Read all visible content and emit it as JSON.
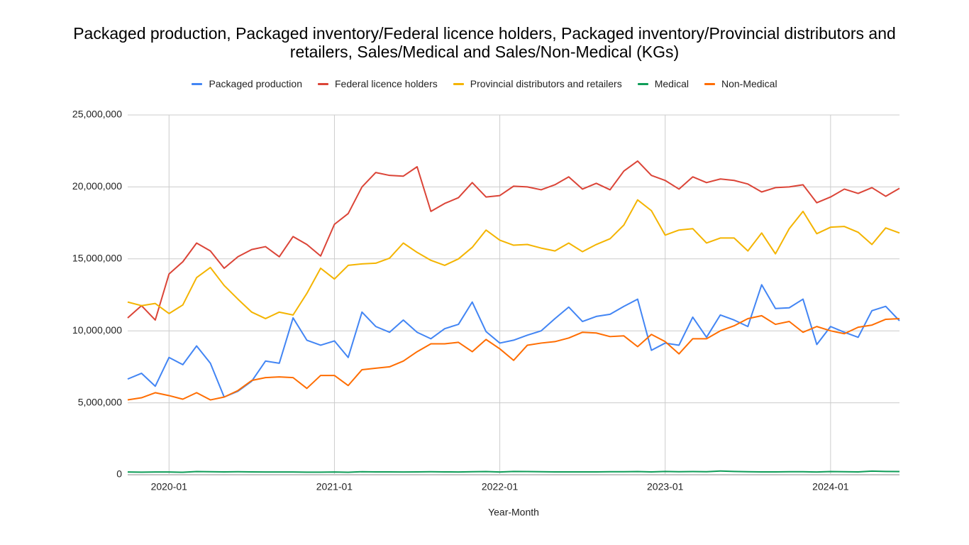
{
  "chart_data": {
    "type": "line",
    "title": "Packaged production, Packaged inventory/Federal licence holders, Packaged inventory/Provincial distributors and retailers, Sales/Medical and Sales/Non-Medical (KGs)",
    "x_label": "Year-Month",
    "categories": [
      null,
      null,
      null,
      "2020-01",
      null,
      null,
      null,
      null,
      null,
      null,
      null,
      null,
      null,
      null,
      null,
      "2021-01",
      null,
      null,
      null,
      null,
      null,
      null,
      null,
      null,
      null,
      null,
      null,
      "2022-01",
      null,
      null,
      null,
      null,
      null,
      null,
      null,
      null,
      null,
      null,
      null,
      "2023-01",
      null,
      null,
      null,
      null,
      null,
      null,
      null,
      null,
      null,
      null,
      null,
      "2024-01",
      null,
      null,
      null,
      null,
      null
    ],
    "ylim": [
      0,
      25000000
    ],
    "yticks": [
      0,
      {
        "value": 5000000,
        "label": "5,000,000"
      },
      {
        "value": 10000000,
        "label": "10,000,000"
      },
      {
        "value": 15000000,
        "label": "15,000,000"
      },
      {
        "value": 20000000,
        "label": "20,000,000"
      },
      {
        "value": 25000000,
        "label": "25,000,000"
      }
    ],
    "grid": true,
    "legend": "top",
    "series": [
      {
        "name": "Packaged production",
        "color": "#4285f4",
        "values": [
          6650000,
          7050000,
          6150000,
          8150000,
          7650000,
          8950000,
          7750000,
          5400000,
          5800000,
          6500000,
          7900000,
          7750000,
          10900000,
          9350000,
          9000000,
          9300000,
          8150000,
          11300000,
          10300000,
          9900000,
          10750000,
          9900000,
          9450000,
          10150000,
          10450000,
          12000000,
          9950000,
          9150000,
          9350000,
          9700000,
          10000000,
          10850000,
          11650000,
          10650000,
          11000000,
          11150000,
          11700000,
          12200000,
          8650000,
          9150000,
          9000000,
          10950000,
          9550000,
          11100000,
          10750000,
          10300000,
          13200000,
          11550000,
          11600000,
          12200000,
          9050000,
          10300000,
          9900000,
          9550000,
          11400000,
          11700000,
          10700000
        ]
      },
      {
        "name": "Federal licence holders",
        "color": "#db4437",
        "values": [
          10900000,
          11750000,
          10750000,
          13950000,
          14800000,
          16100000,
          15550000,
          14350000,
          15150000,
          15650000,
          15850000,
          15150000,
          16550000,
          16000000,
          15200000,
          17400000,
          18150000,
          20000000,
          21000000,
          20800000,
          20750000,
          21400000,
          18300000,
          18850000,
          19250000,
          20300000,
          19300000,
          19400000,
          20050000,
          20000000,
          19800000,
          20150000,
          20700000,
          19850000,
          20250000,
          19800000,
          21100000,
          21800000,
          20800000,
          20450000,
          19850000,
          20700000,
          20300000,
          20550000,
          20450000,
          20200000,
          19650000,
          19950000,
          20000000,
          20150000,
          18900000,
          19300000,
          19850000,
          19550000,
          19950000,
          19350000,
          19900000
        ]
      },
      {
        "name": "Provincial distributors and retailers",
        "color": "#f4b400",
        "values": [
          12000000,
          11750000,
          11900000,
          11200000,
          11800000,
          13700000,
          14400000,
          13150000,
          12200000,
          11300000,
          10850000,
          11300000,
          11100000,
          12600000,
          14350000,
          13600000,
          14550000,
          14650000,
          14700000,
          15050000,
          16100000,
          15450000,
          14900000,
          14550000,
          15000000,
          15800000,
          17000000,
          16300000,
          15950000,
          16000000,
          15750000,
          15550000,
          16100000,
          15500000,
          16000000,
          16400000,
          17350000,
          19100000,
          18350000,
          16650000,
          17000000,
          17100000,
          16100000,
          16450000,
          16450000,
          15550000,
          16800000,
          15350000,
          17100000,
          18300000,
          16750000,
          17200000,
          17250000,
          16850000,
          16000000,
          17150000,
          16800000
        ]
      },
      {
        "name": "Medical",
        "color": "#0f9d58",
        "values": [
          190000,
          180000,
          190000,
          190000,
          170000,
          220000,
          210000,
          200000,
          210000,
          200000,
          190000,
          190000,
          190000,
          180000,
          180000,
          190000,
          170000,
          210000,
          200000,
          200000,
          190000,
          200000,
          210000,
          200000,
          190000,
          210000,
          220000,
          190000,
          230000,
          220000,
          210000,
          200000,
          200000,
          200000,
          200000,
          210000,
          210000,
          220000,
          200000,
          230000,
          210000,
          220000,
          210000,
          260000,
          230000,
          210000,
          200000,
          200000,
          210000,
          210000,
          190000,
          220000,
          210000,
          200000,
          250000,
          230000,
          220000
        ]
      },
      {
        "name": "Non-Medical",
        "color": "#ff6d01",
        "values": [
          5200000,
          5350000,
          5700000,
          5500000,
          5250000,
          5700000,
          5200000,
          5400000,
          5850000,
          6550000,
          6750000,
          6800000,
          6750000,
          6000000,
          6900000,
          6900000,
          6200000,
          7300000,
          7400000,
          7500000,
          7900000,
          8550000,
          9100000,
          9100000,
          9200000,
          8550000,
          9400000,
          8750000,
          7950000,
          9000000,
          9150000,
          9250000,
          9500000,
          9900000,
          9850000,
          9600000,
          9650000,
          8900000,
          9750000,
          9250000,
          8400000,
          9450000,
          9450000,
          10000000,
          10350000,
          10850000,
          11050000,
          10450000,
          10650000,
          9900000,
          10300000,
          10000000,
          9800000,
          10250000,
          10400000,
          10800000,
          10850000
        ]
      }
    ]
  }
}
